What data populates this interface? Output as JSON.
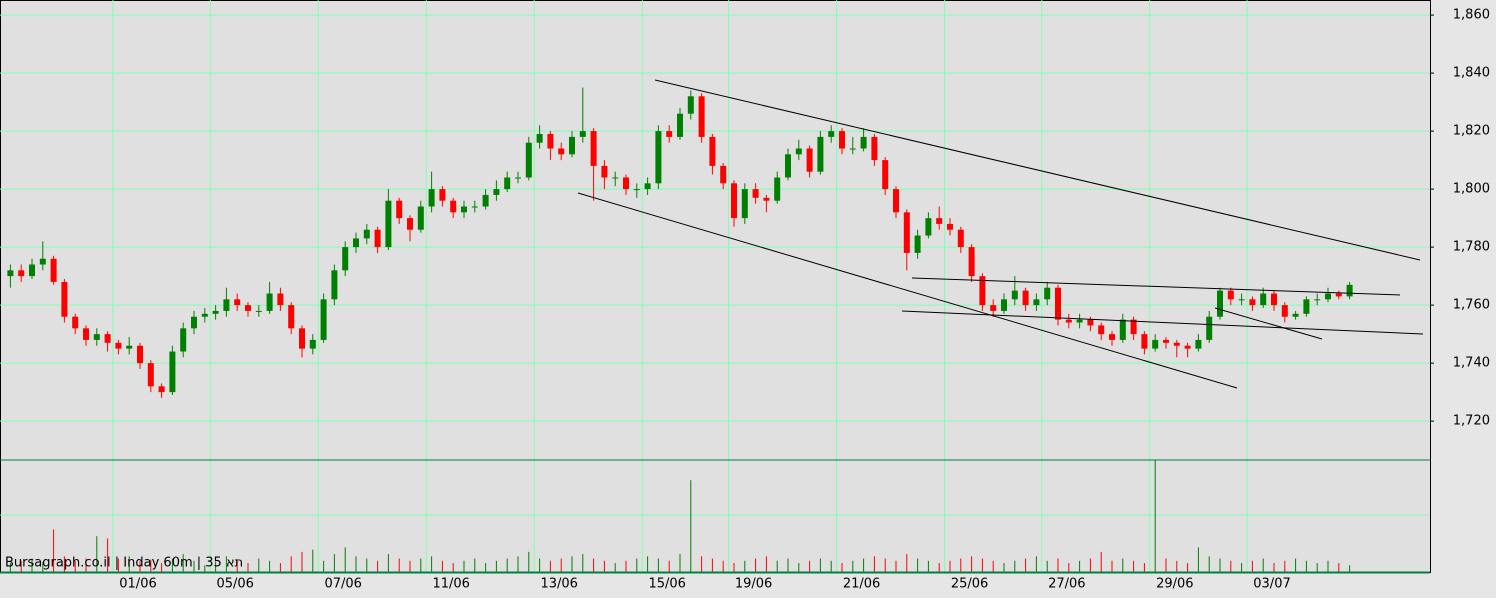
{
  "chart_data": {
    "type": "candlestick",
    "subtitle": "Bursagraph.co.il | Inday 60m | 35 תא",
    "categories": [
      null,
      null,
      null,
      null,
      null,
      null,
      null,
      null,
      null,
      null,
      "01/06",
      null,
      null,
      null,
      null,
      null,
      null,
      null,
      null,
      "05/06",
      null,
      null,
      null,
      null,
      null,
      null,
      null,
      null,
      null,
      "07/06",
      null,
      null,
      null,
      null,
      null,
      null,
      null,
      null,
      null,
      "11/06",
      null,
      null,
      null,
      null,
      null,
      null,
      null,
      null,
      null,
      "13/06",
      null,
      null,
      null,
      null,
      null,
      null,
      null,
      null,
      null,
      "15/06",
      null,
      null,
      null,
      null,
      null,
      null,
      null,
      "19/06",
      null,
      null,
      null,
      null,
      null,
      null,
      null,
      null,
      null,
      "21/06",
      null,
      null,
      null,
      null,
      null,
      null,
      null,
      null,
      null,
      "25/06",
      null,
      null,
      null,
      null,
      null,
      null,
      null,
      null,
      "27/06",
      null,
      null,
      null,
      null,
      null,
      null,
      null,
      null,
      null,
      "29/06",
      null,
      null,
      null,
      null,
      null,
      null,
      null,
      null,
      "03/07",
      null,
      null,
      null,
      null,
      null,
      null,
      null,
      null,
      null
    ],
    "values": [
      [
        1770,
        1774,
        1766,
        1772
      ],
      [
        1772,
        1774,
        1768,
        1770
      ],
      [
        1770,
        1776,
        1769,
        1774
      ],
      [
        1774,
        1782,
        1772,
        1776
      ],
      [
        1776,
        1777,
        1767,
        1768
      ],
      [
        1768,
        1769,
        1754,
        1756
      ],
      [
        1756,
        1757,
        1750,
        1752
      ],
      [
        1752,
        1753,
        1746,
        1748
      ],
      [
        1748,
        1752,
        1746,
        1750
      ],
      [
        1750,
        1751,
        1744,
        1747
      ],
      [
        1747,
        1748,
        1743,
        1745
      ],
      [
        1745,
        1749,
        1743,
        1746
      ],
      [
        1746,
        1747,
        1738,
        1740
      ],
      [
        1740,
        1741,
        1730,
        1732
      ],
      [
        1732,
        1733,
        1728,
        1730
      ],
      [
        1730,
        1746,
        1729,
        1744
      ],
      [
        1744,
        1754,
        1742,
        1752
      ],
      [
        1752,
        1758,
        1750,
        1756
      ],
      [
        1756,
        1759,
        1754,
        1757
      ],
      [
        1757,
        1760,
        1755,
        1758
      ],
      [
        1758,
        1766,
        1756,
        1762
      ],
      [
        1762,
        1764,
        1758,
        1760
      ],
      [
        1760,
        1761,
        1756,
        1758
      ],
      [
        1758,
        1760,
        1756,
        1758
      ],
      [
        1758,
        1768,
        1757,
        1764
      ],
      [
        1764,
        1766,
        1758,
        1760
      ],
      [
        1760,
        1761,
        1750,
        1752
      ],
      [
        1752,
        1753,
        1742,
        1745
      ],
      [
        1745,
        1750,
        1743,
        1748
      ],
      [
        1748,
        1764,
        1747,
        1762
      ],
      [
        1762,
        1774,
        1760,
        1772
      ],
      [
        1772,
        1782,
        1770,
        1780
      ],
      [
        1780,
        1785,
        1778,
        1783
      ],
      [
        1783,
        1788,
        1781,
        1786
      ],
      [
        1786,
        1787,
        1778,
        1780
      ],
      [
        1780,
        1800,
        1779,
        1796
      ],
      [
        1796,
        1797,
        1788,
        1790
      ],
      [
        1790,
        1791,
        1782,
        1786
      ],
      [
        1786,
        1796,
        1785,
        1794
      ],
      [
        1794,
        1806,
        1792,
        1800
      ],
      [
        1800,
        1801,
        1794,
        1796
      ],
      [
        1796,
        1797,
        1790,
        1792
      ],
      [
        1792,
        1796,
        1790,
        1794
      ],
      [
        1794,
        1796,
        1792,
        1794
      ],
      [
        1794,
        1800,
        1793,
        1798
      ],
      [
        1798,
        1803,
        1796,
        1800
      ],
      [
        1800,
        1806,
        1799,
        1804
      ],
      [
        1804,
        1806,
        1802,
        1804
      ],
      [
        1804,
        1818,
        1803,
        1816
      ],
      [
        1816,
        1822,
        1814,
        1819
      ],
      [
        1819,
        1820,
        1810,
        1814
      ],
      [
        1814,
        1816,
        1810,
        1812
      ],
      [
        1812,
        1820,
        1811,
        1818
      ],
      [
        1818,
        1835,
        1816,
        1820
      ],
      [
        1820,
        1821,
        1796,
        1808
      ],
      [
        1808,
        1810,
        1800,
        1804
      ],
      [
        1804,
        1806,
        1801,
        1804
      ],
      [
        1804,
        1805,
        1798,
        1800
      ],
      [
        1800,
        1802,
        1797,
        1800
      ],
      [
        1800,
        1804,
        1798,
        1802
      ],
      [
        1802,
        1822,
        1800,
        1820
      ],
      [
        1820,
        1822,
        1816,
        1818
      ],
      [
        1818,
        1828,
        1817,
        1826
      ],
      [
        1826,
        1834,
        1824,
        1832
      ],
      [
        1832,
        1833,
        1816,
        1818
      ],
      [
        1818,
        1819,
        1805,
        1808
      ],
      [
        1808,
        1809,
        1800,
        1802
      ],
      [
        1802,
        1803,
        1787,
        1790
      ],
      [
        1790,
        1802,
        1788,
        1800
      ],
      [
        1800,
        1802,
        1795,
        1797
      ],
      [
        1797,
        1798,
        1792,
        1796
      ],
      [
        1796,
        1806,
        1795,
        1804
      ],
      [
        1804,
        1814,
        1803,
        1812
      ],
      [
        1812,
        1817,
        1810,
        1814
      ],
      [
        1814,
        1815,
        1804,
        1806
      ],
      [
        1806,
        1820,
        1805,
        1818
      ],
      [
        1818,
        1822,
        1816,
        1820
      ],
      [
        1820,
        1821,
        1812,
        1814
      ],
      [
        1814,
        1818,
        1812,
        1814
      ],
      [
        1814,
        1821,
        1813,
        1818
      ],
      [
        1818,
        1819,
        1808,
        1810
      ],
      [
        1810,
        1811,
        1798,
        1800
      ],
      [
        1800,
        1801,
        1790,
        1792
      ],
      [
        1792,
        1793,
        1772,
        1778
      ],
      [
        1778,
        1786,
        1776,
        1784
      ],
      [
        1784,
        1792,
        1783,
        1790
      ],
      [
        1790,
        1794,
        1786,
        1788
      ],
      [
        1788,
        1790,
        1784,
        1786
      ],
      [
        1786,
        1787,
        1778,
        1780
      ],
      [
        1780,
        1781,
        1768,
        1770
      ],
      [
        1770,
        1771,
        1758,
        1760
      ],
      [
        1760,
        1762,
        1756,
        1758
      ],
      [
        1758,
        1764,
        1757,
        1762
      ],
      [
        1762,
        1770,
        1760,
        1765
      ],
      [
        1765,
        1766,
        1758,
        1760
      ],
      [
        1760,
        1764,
        1758,
        1762
      ],
      [
        1762,
        1768,
        1760,
        1766
      ],
      [
        1766,
        1767,
        1753,
        1755
      ],
      [
        1755,
        1757,
        1752,
        1754
      ],
      [
        1754,
        1757,
        1752,
        1755
      ],
      [
        1755,
        1756,
        1751,
        1753
      ],
      [
        1753,
        1754,
        1748,
        1750
      ],
      [
        1750,
        1751,
        1746,
        1748
      ],
      [
        1748,
        1757,
        1747,
        1755
      ],
      [
        1755,
        1756,
        1748,
        1750
      ],
      [
        1750,
        1751,
        1743,
        1745
      ],
      [
        1745,
        1750,
        1744,
        1748
      ],
      [
        1748,
        1749,
        1745,
        1747
      ],
      [
        1747,
        1748,
        1742,
        1746
      ],
      [
        1746,
        1747,
        1742,
        1745
      ],
      [
        1745,
        1750,
        1744,
        1748
      ],
      [
        1748,
        1758,
        1747,
        1756
      ],
      [
        1756,
        1766,
        1755,
        1765
      ],
      [
        1765,
        1766,
        1760,
        1762
      ],
      [
        1762,
        1764,
        1760,
        1762
      ],
      [
        1762,
        1763,
        1758,
        1760
      ],
      [
        1760,
        1766,
        1759,
        1764
      ],
      [
        1764,
        1765,
        1758,
        1760
      ],
      [
        1760,
        1761,
        1754,
        1756
      ],
      [
        1756,
        1758,
        1755,
        1757
      ],
      [
        1757,
        1763,
        1756,
        1762
      ],
      [
        1762,
        1764,
        1760,
        1762
      ],
      [
        1762,
        1766,
        1761,
        1764
      ],
      [
        1764,
        1765,
        1762,
        1763
      ],
      [
        1763,
        1768,
        1762,
        1767
      ]
    ],
    "volume": [
      8,
      10,
      12,
      9,
      38,
      14,
      10,
      12,
      32,
      30,
      12,
      14,
      10,
      11,
      8,
      12,
      16,
      10,
      6,
      9,
      14,
      10,
      8,
      12,
      10,
      8,
      14,
      18,
      20,
      10,
      16,
      22,
      14,
      12,
      10,
      16,
      12,
      10,
      12,
      14,
      10,
      8,
      10,
      12,
      8,
      10,
      12,
      14,
      18,
      12,
      10,
      12,
      14,
      16,
      12,
      10,
      8,
      10,
      12,
      14,
      12,
      10,
      16,
      82,
      14,
      12,
      10,
      8,
      10,
      12,
      14,
      10,
      12,
      8,
      10,
      12,
      10,
      8,
      10,
      12,
      14,
      12,
      10,
      16,
      12,
      10,
      8,
      10,
      12,
      14,
      12,
      10,
      8,
      10,
      12,
      14,
      10,
      12,
      8,
      10,
      12,
      18,
      10,
      12,
      10,
      8,
      100,
      12,
      10,
      8,
      22,
      14,
      12,
      10,
      8,
      10,
      12,
      8,
      10,
      12,
      10,
      8,
      10,
      8,
      6
    ],
    "up_color": "#008000",
    "down_color": "#ff0000",
    "ylim": [
      1706.6,
      1865.2
    ],
    "yticks": [
      {
        "value": 1720,
        "label": "1,720"
      },
      {
        "value": 1740,
        "label": "1,740"
      },
      {
        "value": 1760,
        "label": "1,760"
      },
      {
        "value": 1780,
        "label": "1,780"
      },
      {
        "value": 1800,
        "label": "1,800"
      },
      {
        "value": 1820,
        "label": "1,820"
      },
      {
        "value": 1840,
        "label": "1,840"
      },
      {
        "value": 1860,
        "label": "1,860"
      }
    ],
    "vlim": [
      0,
      100
    ],
    "grid": true
  }
}
